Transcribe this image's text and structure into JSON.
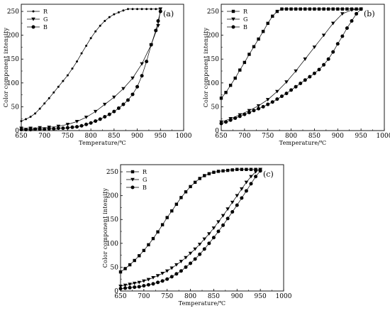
{
  "chart_data": [
    {
      "type": "line",
      "panel_label": "(a)",
      "xlabel": "Temperature/℃",
      "ylabel": "Color component intensity",
      "xlim": [
        650,
        1000
      ],
      "ylim": [
        0,
        265
      ],
      "xticks": [
        "650",
        "700",
        "750",
        "800",
        "850",
        "900",
        "950",
        "1000"
      ],
      "yticks": [
        "0",
        "50",
        "100",
        "150",
        "200",
        "250"
      ],
      "legend_position": "top-left",
      "series": [
        {
          "name": "R",
          "marker": "small-dot",
          "color": "#000000",
          "x": [
            650,
            660,
            670,
            680,
            690,
            700,
            710,
            720,
            730,
            740,
            750,
            760,
            770,
            780,
            790,
            800,
            810,
            820,
            830,
            840,
            850,
            860,
            870,
            880,
            890,
            900,
            910,
            920,
            930,
            940,
            950
          ],
          "y": [
            20,
            24,
            29,
            36,
            46,
            57,
            68,
            80,
            92,
            104,
            116,
            130,
            145,
            162,
            178,
            194,
            208,
            220,
            230,
            238,
            244,
            248,
            252,
            255,
            255,
            255,
            255,
            255,
            255,
            255,
            255
          ]
        },
        {
          "name": "G",
          "marker": "triangle-down",
          "color": "#000000",
          "x": [
            650,
            670,
            690,
            710,
            730,
            750,
            770,
            790,
            810,
            830,
            850,
            870,
            890,
            910,
            930,
            945,
            950
          ],
          "y": [
            5,
            5,
            6,
            7,
            9,
            13,
            19,
            28,
            40,
            55,
            70,
            88,
            110,
            140,
            180,
            220,
            255
          ]
        },
        {
          "name": "B",
          "marker": "circle",
          "color": "#000000",
          "x": [
            650,
            660,
            670,
            680,
            690,
            700,
            710,
            720,
            730,
            740,
            750,
            760,
            770,
            780,
            790,
            800,
            810,
            820,
            830,
            840,
            850,
            860,
            870,
            880,
            890,
            900,
            910,
            920,
            930,
            940,
            945,
            950
          ],
          "y": [
            2,
            2,
            2,
            3,
            3,
            3,
            4,
            4,
            5,
            5,
            6,
            7,
            8,
            10,
            13,
            16,
            20,
            24,
            29,
            34,
            40,
            47,
            55,
            64,
            76,
            92,
            115,
            145,
            180,
            210,
            230,
            250
          ]
        }
      ]
    },
    {
      "type": "line",
      "panel_label": "(b)",
      "xlabel": "Temperature/℃",
      "ylabel": "Color component intensity",
      "xlim": [
        650,
        1000
      ],
      "ylim": [
        0,
        265
      ],
      "xticks": [
        "650",
        "700",
        "750",
        "800",
        "850",
        "900",
        "950",
        "1000"
      ],
      "yticks": [
        "0",
        "50",
        "100",
        "150",
        "200",
        "250"
      ],
      "legend_position": "top-left",
      "series": [
        {
          "name": "R",
          "marker": "square",
          "color": "#000000",
          "x": [
            650,
            660,
            670,
            680,
            690,
            700,
            710,
            720,
            730,
            740,
            750,
            760,
            770,
            780,
            790,
            800,
            810,
            820,
            830,
            840,
            850,
            860,
            870,
            880,
            890,
            900,
            910,
            920,
            930,
            940,
            950
          ],
          "y": [
            68,
            80,
            95,
            110,
            127,
            143,
            160,
            176,
            192,
            208,
            225,
            240,
            250,
            255,
            255,
            255,
            255,
            255,
            255,
            255,
            255,
            255,
            255,
            255,
            255,
            255,
            255,
            255,
            255,
            255,
            255
          ]
        },
        {
          "name": "G",
          "marker": "triangle-down",
          "color": "#000000",
          "x": [
            650,
            670,
            690,
            710,
            730,
            750,
            770,
            790,
            810,
            830,
            850,
            870,
            890,
            910,
            930,
            950
          ],
          "y": [
            18,
            25,
            33,
            42,
            52,
            65,
            82,
            102,
            125,
            150,
            175,
            200,
            225,
            245,
            253,
            255
          ]
        },
        {
          "name": "B",
          "marker": "circle",
          "color": "#000000",
          "x": [
            650,
            660,
            670,
            680,
            690,
            700,
            710,
            720,
            730,
            740,
            750,
            760,
            770,
            780,
            790,
            800,
            810,
            820,
            830,
            840,
            850,
            860,
            870,
            880,
            890,
            900,
            910,
            920,
            930,
            940,
            950
          ],
          "y": [
            15,
            18,
            22,
            26,
            30,
            34,
            38,
            42,
            46,
            50,
            55,
            60,
            66,
            72,
            78,
            85,
            92,
            99,
            106,
            113,
            120,
            128,
            138,
            150,
            165,
            182,
            198,
            215,
            230,
            245,
            255
          ]
        }
      ]
    },
    {
      "type": "line",
      "panel_label": "(c)",
      "xlabel": "Temperature/℃",
      "ylabel": "Color component intensity",
      "xlim": [
        650,
        1000
      ],
      "ylim": [
        0,
        265
      ],
      "xticks": [
        "650",
        "700",
        "750",
        "800",
        "850",
        "900",
        "950",
        "1000"
      ],
      "yticks": [
        "0",
        "50",
        "100",
        "150",
        "200",
        "250"
      ],
      "legend_position": "top-left",
      "series": [
        {
          "name": "R",
          "marker": "square",
          "color": "#000000",
          "x": [
            650,
            660,
            670,
            680,
            690,
            700,
            710,
            720,
            730,
            740,
            750,
            760,
            770,
            780,
            790,
            800,
            810,
            820,
            830,
            840,
            850,
            860,
            870,
            880,
            890,
            900,
            910,
            920,
            930,
            940,
            950
          ],
          "y": [
            40,
            47,
            55,
            64,
            74,
            85,
            97,
            110,
            124,
            139,
            154,
            168,
            182,
            196,
            208,
            219,
            228,
            236,
            242,
            246,
            249,
            251,
            252,
            253,
            254,
            255,
            255,
            255,
            255,
            255,
            255
          ]
        },
        {
          "name": "G",
          "marker": "triangle-down",
          "color": "#000000",
          "x": [
            650,
            660,
            670,
            680,
            690,
            700,
            710,
            720,
            730,
            740,
            750,
            760,
            770,
            780,
            790,
            800,
            810,
            820,
            830,
            840,
            850,
            860,
            870,
            880,
            890,
            900,
            910,
            920,
            930,
            940,
            950
          ],
          "y": [
            10,
            12,
            14,
            16,
            18,
            21,
            24,
            28,
            32,
            37,
            42,
            48,
            55,
            62,
            70,
            79,
            88,
            98,
            109,
            120,
            132,
            145,
            158,
            172,
            186,
            200,
            214,
            228,
            240,
            250,
            255
          ]
        },
        {
          "name": "B",
          "marker": "circle",
          "color": "#000000",
          "x": [
            650,
            660,
            670,
            680,
            690,
            700,
            710,
            720,
            730,
            740,
            750,
            760,
            770,
            780,
            790,
            800,
            810,
            820,
            830,
            840,
            850,
            860,
            870,
            880,
            890,
            900,
            910,
            920,
            930,
            940,
            950
          ],
          "y": [
            5,
            6,
            7,
            8,
            9,
            11,
            13,
            15,
            18,
            21,
            25,
            30,
            36,
            42,
            50,
            58,
            67,
            77,
            88,
            100,
            112,
            125,
            138,
            152,
            166,
            180,
            195,
            210,
            225,
            240,
            252
          ]
        }
      ]
    }
  ]
}
